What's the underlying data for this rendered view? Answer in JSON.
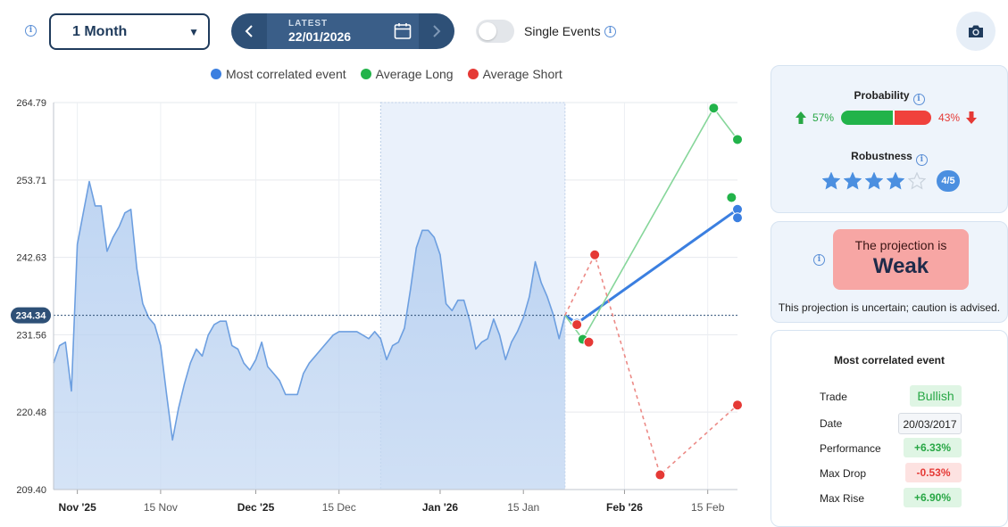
{
  "toolbar": {
    "period_value": "1 Month",
    "latest_label": "LATEST",
    "latest_date": "22/01/2026",
    "single_events_label": "Single Events"
  },
  "legend": [
    {
      "name": "Most correlated event",
      "color": "#3b7fe0"
    },
    {
      "name": "Average Long",
      "color": "#22b34a"
    },
    {
      "name": "Average Short",
      "color": "#e53935"
    }
  ],
  "probability": {
    "title": "Probability",
    "long_pct": 57,
    "long_label": "57%",
    "short_label": "43%"
  },
  "robustness": {
    "title": "Robustness",
    "stars_filled": 4,
    "stars_total": 5,
    "score_label": "4/5"
  },
  "projection": {
    "line1": "The projection is",
    "line2": "Weak",
    "note": "This projection is uncertain; caution is advised."
  },
  "event": {
    "title": "Most correlated event",
    "rows": [
      {
        "label": "Trade",
        "value": "Bullish"
      },
      {
        "label": "Date",
        "value": "20/03/2017"
      },
      {
        "label": "Performance",
        "value": "+6.33%"
      },
      {
        "label": "Max Drop",
        "value": "-0.53%"
      },
      {
        "label": "Max Rise",
        "value": "+6.90%"
      }
    ]
  },
  "chart_data": {
    "type": "area",
    "title": "",
    "xlabel": "",
    "ylabel": "",
    "ylim": [
      209.4,
      264.79
    ],
    "yticks": [
      209.4,
      220.48,
      231.56,
      242.63,
      253.71,
      264.79
    ],
    "ytick_labels": [
      "209.40",
      "220.48",
      "231.56",
      "242.63",
      "253.71",
      "264.79"
    ],
    "xlim": [
      "2025-10-28",
      "2026-02-20"
    ],
    "xticks": [
      {
        "date": "2025-11-01",
        "label": "Nov '25",
        "major": true
      },
      {
        "date": "2025-11-15",
        "label": "15 Nov",
        "major": false
      },
      {
        "date": "2025-12-01",
        "label": "Dec '25",
        "major": true
      },
      {
        "date": "2025-12-15",
        "label": "15 Dec",
        "major": false
      },
      {
        "date": "2026-01-01",
        "label": "Jan '26",
        "major": true
      },
      {
        "date": "2026-01-15",
        "label": "15 Jan",
        "major": false
      },
      {
        "date": "2026-02-01",
        "label": "Feb '26",
        "major": true
      },
      {
        "date": "2026-02-15",
        "label": "15 Feb",
        "major": false
      }
    ],
    "current_value": 234.34,
    "current_label": "234.34",
    "highlight_range": [
      "2025-12-22",
      "2026-01-22"
    ],
    "grid": true,
    "price_series": {
      "x": [
        "2025-10-28",
        "2025-10-29",
        "2025-10-30",
        "2025-10-31",
        "2025-11-01",
        "2025-11-02",
        "2025-11-03",
        "2025-11-04",
        "2025-11-05",
        "2025-11-06",
        "2025-11-07",
        "2025-11-08",
        "2025-11-09",
        "2025-11-10",
        "2025-11-11",
        "2025-11-12",
        "2025-11-13",
        "2025-11-14",
        "2025-11-15",
        "2025-11-16",
        "2025-11-17",
        "2025-11-18",
        "2025-11-19",
        "2025-11-20",
        "2025-11-21",
        "2025-11-22",
        "2025-11-23",
        "2025-11-24",
        "2025-11-25",
        "2025-11-26",
        "2025-11-27",
        "2025-11-28",
        "2025-11-29",
        "2025-11-30",
        "2025-12-01",
        "2025-12-02",
        "2025-12-03",
        "2025-12-04",
        "2025-12-05",
        "2025-12-06",
        "2025-12-07",
        "2025-12-08",
        "2025-12-09",
        "2025-12-10",
        "2025-12-11",
        "2025-12-12",
        "2025-12-13",
        "2025-12-14",
        "2025-12-15",
        "2025-12-16",
        "2025-12-17",
        "2025-12-18",
        "2025-12-19",
        "2025-12-20",
        "2025-12-21",
        "2025-12-22",
        "2025-12-23",
        "2025-12-24",
        "2025-12-25",
        "2025-12-26",
        "2025-12-27",
        "2025-12-28",
        "2025-12-29",
        "2025-12-30",
        "2025-12-31",
        "2026-01-01",
        "2026-01-02",
        "2026-01-03",
        "2026-01-04",
        "2026-01-05",
        "2026-01-06",
        "2026-01-07",
        "2026-01-08",
        "2026-01-09",
        "2026-01-10",
        "2026-01-11",
        "2026-01-12",
        "2026-01-13",
        "2026-01-14",
        "2026-01-15",
        "2026-01-16",
        "2026-01-17",
        "2026-01-18",
        "2026-01-19",
        "2026-01-20",
        "2026-01-21",
        "2026-01-22"
      ],
      "values": [
        227.5,
        230.0,
        230.5,
        223.5,
        244.5,
        249.0,
        253.5,
        250.0,
        250.0,
        243.5,
        245.5,
        247.0,
        249.0,
        249.5,
        241.0,
        236.0,
        234.0,
        233.0,
        230.0,
        223.0,
        216.5,
        221.0,
        224.5,
        227.5,
        229.5,
        228.5,
        231.5,
        233.0,
        233.5,
        233.5,
        230.0,
        229.5,
        227.5,
        226.5,
        228.0,
        230.5,
        227.0,
        226.0,
        225.0,
        223.0,
        223.0,
        223.0,
        226.0,
        227.5,
        228.5,
        229.5,
        230.5,
        231.5,
        232.0,
        232.0,
        232.0,
        232.0,
        231.5,
        231.0,
        232.0,
        231.0,
        228.0,
        230.0,
        230.5,
        232.5,
        238.0,
        244.0,
        246.5,
        246.5,
        245.5,
        243.0,
        236.0,
        235.0,
        236.5,
        236.5,
        233.5,
        229.5,
        230.5,
        231.0,
        233.8,
        231.5,
        228.0,
        230.5,
        232.0,
        234.0,
        237.0,
        242.0,
        239.0,
        237.0,
        234.5,
        231.0,
        234.34
      ]
    },
    "series": [
      {
        "name": "Most correlated event",
        "color": "#3b7fe0",
        "dashed": false,
        "x": [
          "2026-01-22",
          "2026-01-24",
          "2026-02-20"
        ],
        "values": [
          234.34,
          233.2,
          249.5
        ]
      },
      {
        "name": "Average Long",
        "color": "#22b34a",
        "dashed": false,
        "x": [
          "2026-01-22",
          "2026-01-25",
          "2026-02-16",
          "2026-02-20"
        ],
        "values": [
          234.34,
          230.9,
          264.0,
          259.5
        ]
      },
      {
        "name": "Average Short",
        "color": "#e53935",
        "dashed": true,
        "x": [
          "2026-01-22",
          "2026-01-27",
          "2026-02-07",
          "2026-02-20"
        ],
        "values": [
          234.34,
          243.0,
          211.5,
          221.5
        ]
      },
      {
        "name": "Most correlated event",
        "color": "#3b7fe0",
        "dashed": false,
        "points_only": true,
        "x": [
          "2026-02-20"
        ],
        "values": [
          248.3
        ]
      },
      {
        "name": "Average Long",
        "color": "#22b34a",
        "dashed": false,
        "points_only": true,
        "x": [
          "2026-02-19"
        ],
        "values": [
          251.2
        ]
      },
      {
        "name": "Average Short",
        "color": "#e53935",
        "dashed": false,
        "points_only": true,
        "x": [
          "2026-01-24",
          "2026-01-26"
        ],
        "values": [
          233.0,
          230.5
        ]
      }
    ]
  }
}
